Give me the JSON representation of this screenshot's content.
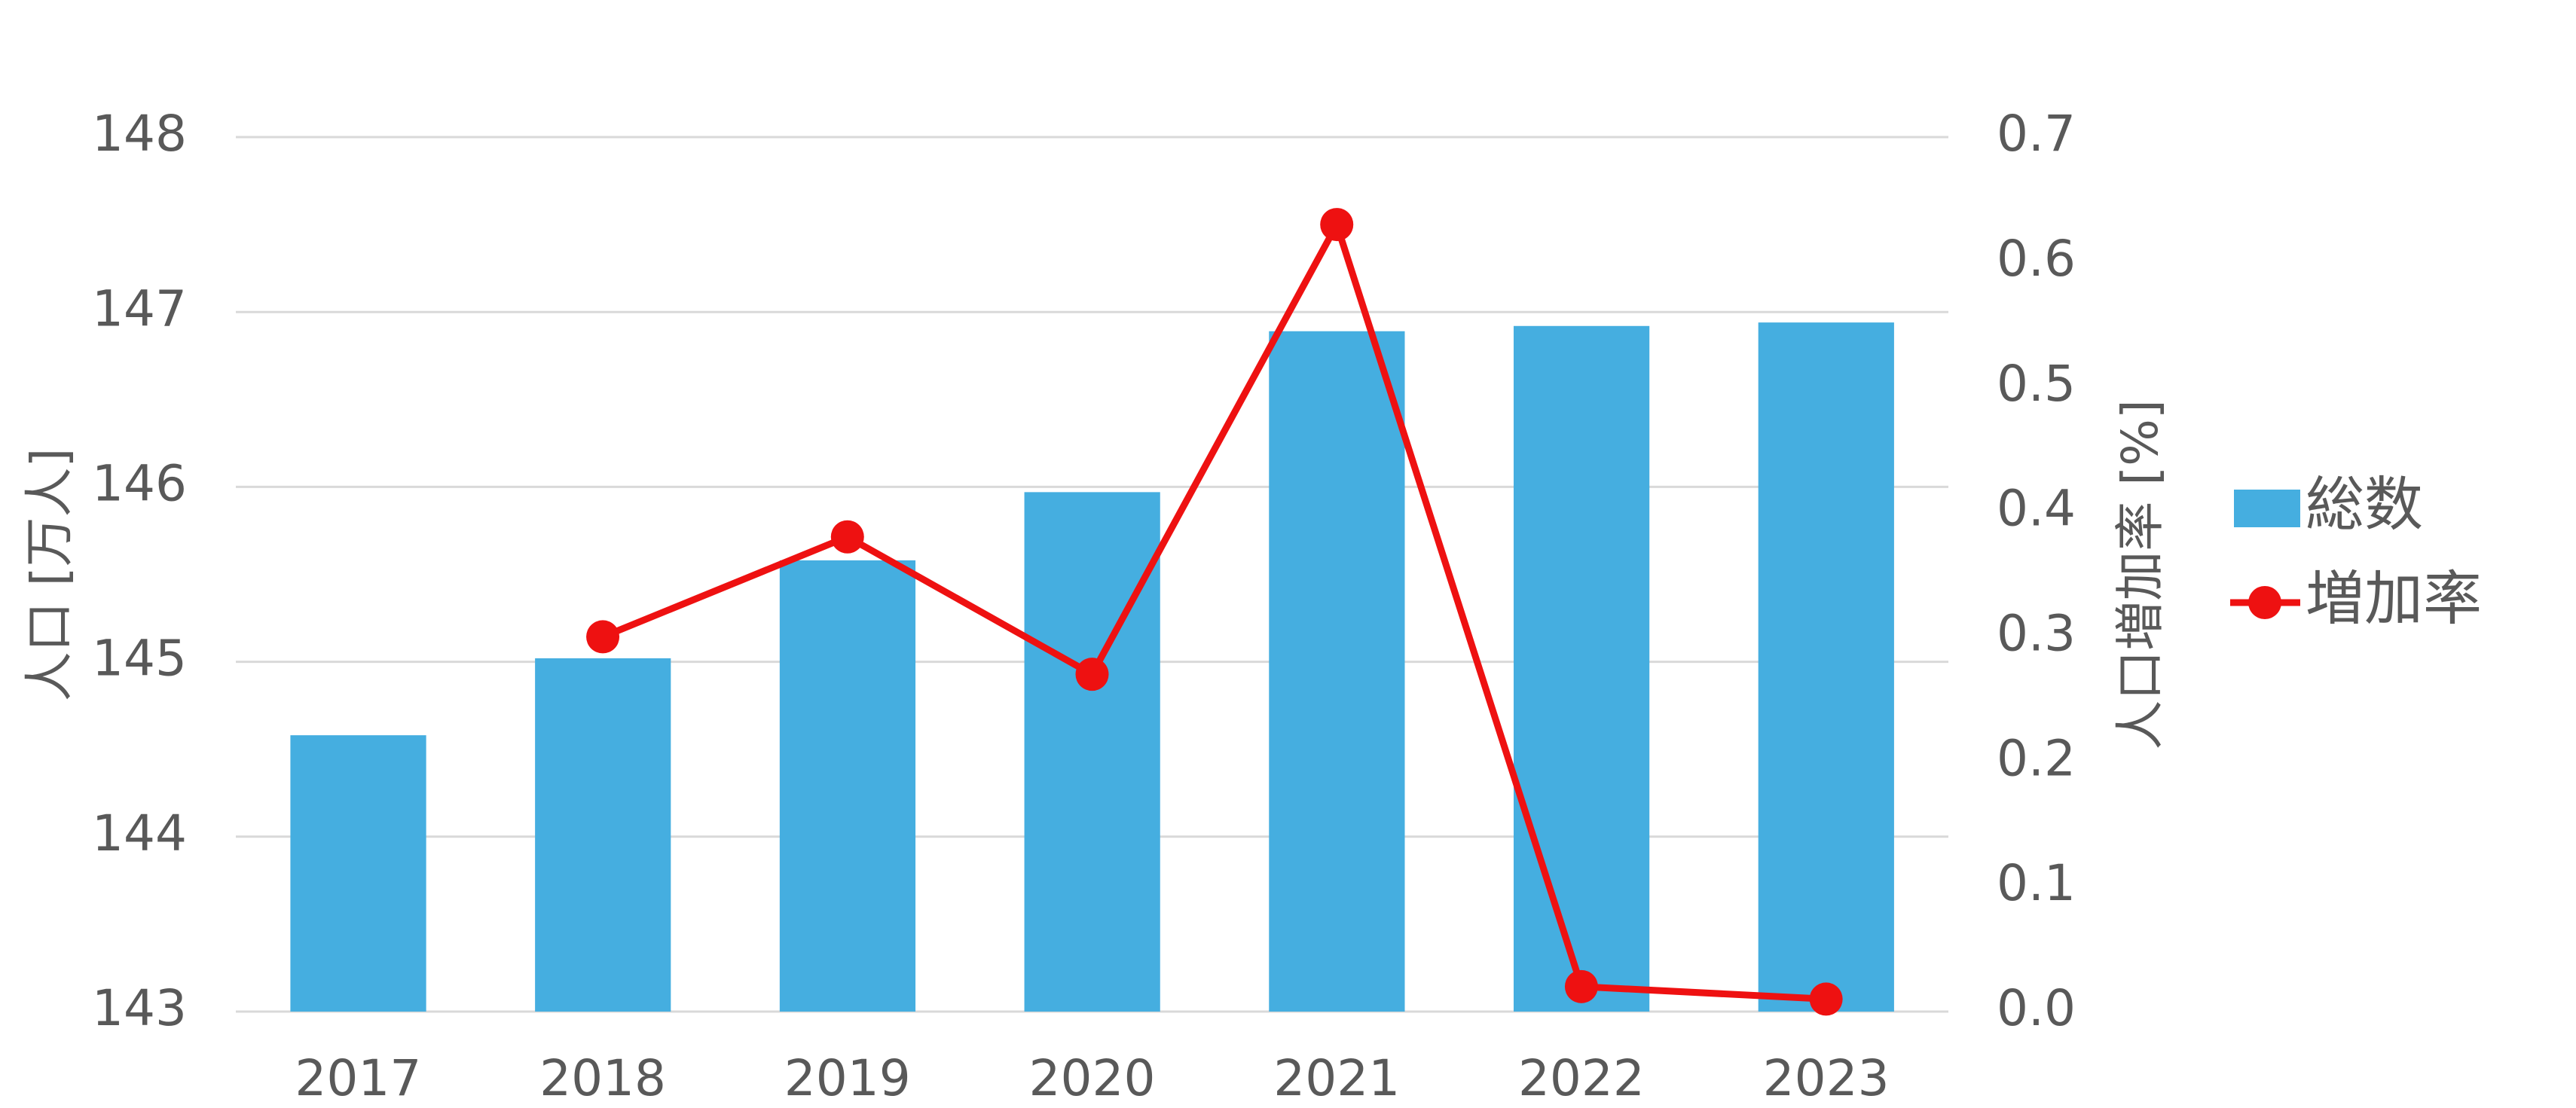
{
  "chart_data": {
    "type": "bar_line",
    "categories": [
      "2017",
      "2018",
      "2019",
      "2020",
      "2021",
      "2022",
      "2023"
    ],
    "series": [
      {
        "name": "総数",
        "type": "bar",
        "color": "#45aee0",
        "values": [
          144.58,
          145.02,
          145.58,
          145.97,
          146.89,
          146.92,
          146.94
        ]
      },
      {
        "name": "増加率",
        "type": "line",
        "axis": "y2",
        "color": "#ee1111",
        "values": [
          null,
          0.3,
          0.38,
          0.27,
          0.63,
          0.02,
          0.01
        ]
      }
    ],
    "ylabel": "人口 [万人]",
    "y2label": "人口増加率 [%]",
    "ylim": [
      143,
      148
    ],
    "yticks": [
      143,
      144,
      145,
      146,
      147,
      148
    ],
    "y2lim": [
      0,
      0.7
    ],
    "y2ticks": [
      {
        "value": 0,
        "label": "0.0"
      },
      0.1,
      0.2,
      0.3,
      0.4,
      0.5,
      0.6,
      0.7
    ],
    "grid": true,
    "legend": "right"
  }
}
